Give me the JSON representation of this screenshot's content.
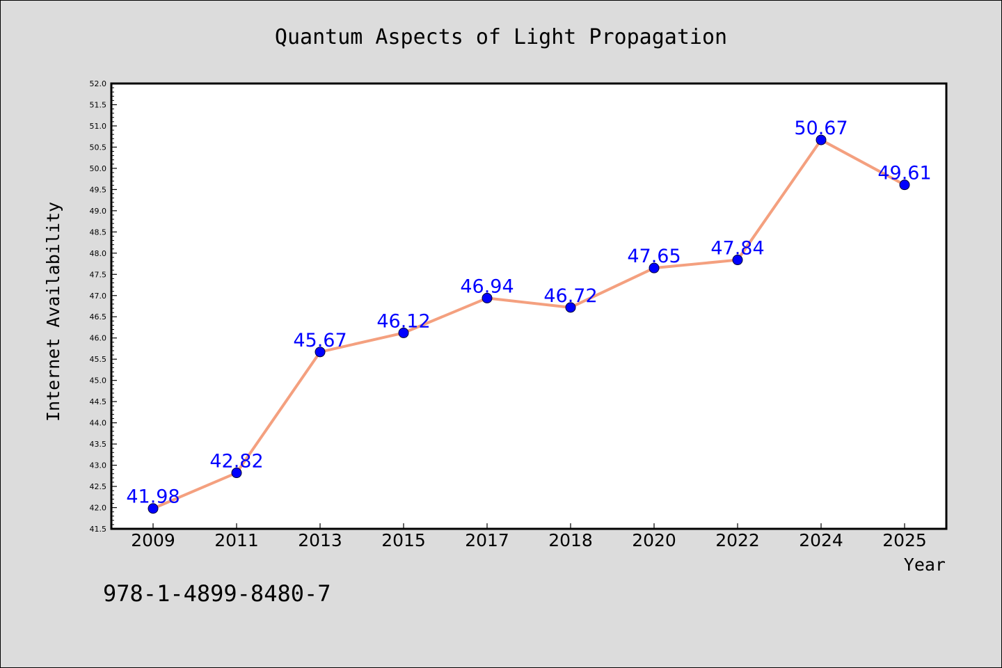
{
  "chart_data": {
    "type": "line",
    "title": "Quantum Aspects of Light Propagation",
    "xlabel": "Year",
    "ylabel": "Internet Availability",
    "categories": [
      "2009",
      "2011",
      "2013",
      "2015",
      "2017",
      "2018",
      "2020",
      "2022",
      "2024",
      "2025"
    ],
    "series": [
      {
        "values": [
          41.98,
          42.82,
          45.67,
          46.12,
          46.94,
          46.72,
          47.65,
          47.84,
          50.67,
          49.61
        ],
        "data_labels": [
          "41.98",
          "42.82",
          "45.67",
          "46.12",
          "46.94",
          "46.72",
          "47.65",
          "47.84",
          "50.67",
          "49.61"
        ],
        "line_color": "#f4a07f",
        "marker_color": "#0000ff"
      }
    ],
    "ylim": [
      41.5,
      52.0
    ],
    "yticks": [
      "41.5",
      "42.0",
      "42.5",
      "43.0",
      "43.5",
      "44.0",
      "44.5",
      "45.0",
      "45.5",
      "46.0",
      "46.5",
      "47.0",
      "47.5",
      "48.0",
      "48.5",
      "49.0",
      "49.5",
      "50.0",
      "50.5",
      "51.0",
      "51.5",
      "52.0"
    ],
    "grid": false,
    "legend": "none",
    "background_color": "#dcdcdc",
    "plot_background_color": "#ffffff",
    "label_color": "#0000ff"
  },
  "footnote": "978-1-4899-8480-7"
}
